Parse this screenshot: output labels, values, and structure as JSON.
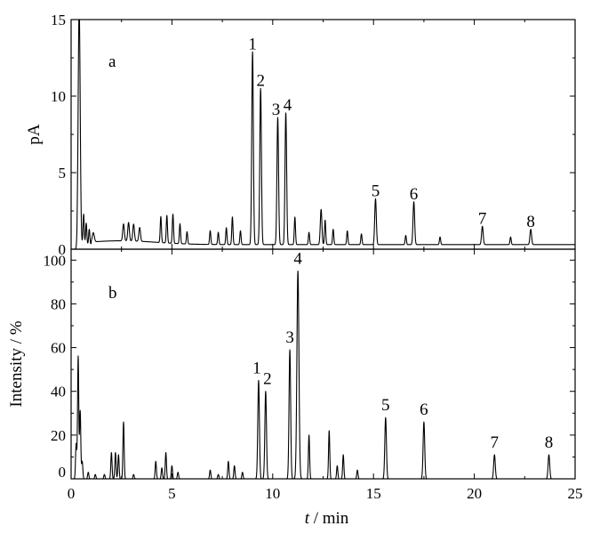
{
  "chart_data": [
    {
      "type": "line",
      "panel_label": "a",
      "ylabel": "pA",
      "xlabel": "",
      "xlim": [
        0,
        25
      ],
      "ylim": [
        0,
        15
      ],
      "yticks": [
        0,
        5,
        10,
        15
      ],
      "baseline": 0.3,
      "peaks": [
        {
          "x": 0.4,
          "y": 15.5,
          "w": 0.05
        },
        {
          "x": 0.62,
          "y": 2.0,
          "w": 0.03
        },
        {
          "x": 0.75,
          "y": 1.4,
          "w": 0.03
        },
        {
          "x": 0.9,
          "y": 1.0,
          "w": 0.03
        },
        {
          "x": 1.1,
          "y": 0.6,
          "w": 0.05
        },
        {
          "x": 2.6,
          "y": 1.1,
          "w": 0.04
        },
        {
          "x": 2.85,
          "y": 1.2,
          "w": 0.04
        },
        {
          "x": 3.1,
          "y": 1.1,
          "w": 0.04
        },
        {
          "x": 3.4,
          "y": 0.9,
          "w": 0.04
        },
        {
          "x": 4.45,
          "y": 1.7,
          "w": 0.03
        },
        {
          "x": 4.75,
          "y": 1.8,
          "w": 0.03
        },
        {
          "x": 5.05,
          "y": 1.9,
          "w": 0.03
        },
        {
          "x": 5.4,
          "y": 1.3,
          "w": 0.03
        },
        {
          "x": 5.75,
          "y": 0.8,
          "w": 0.03
        },
        {
          "x": 6.9,
          "y": 0.9,
          "w": 0.03
        },
        {
          "x": 7.3,
          "y": 0.8,
          "w": 0.03
        },
        {
          "x": 7.7,
          "y": 1.1,
          "w": 0.03
        },
        {
          "x": 8.0,
          "y": 1.8,
          "w": 0.03
        },
        {
          "x": 8.4,
          "y": 0.9,
          "w": 0.03
        },
        {
          "x": 9.0,
          "y": 12.6,
          "w": 0.04
        },
        {
          "x": 9.4,
          "y": 10.2,
          "w": 0.04
        },
        {
          "x": 10.25,
          "y": 8.3,
          "w": 0.04
        },
        {
          "x": 10.65,
          "y": 8.6,
          "w": 0.04
        },
        {
          "x": 11.1,
          "y": 1.8,
          "w": 0.03
        },
        {
          "x": 11.8,
          "y": 0.8,
          "w": 0.03
        },
        {
          "x": 12.4,
          "y": 2.3,
          "w": 0.04
        },
        {
          "x": 12.6,
          "y": 1.6,
          "w": 0.03
        },
        {
          "x": 13.0,
          "y": 1.0,
          "w": 0.03
        },
        {
          "x": 13.7,
          "y": 0.9,
          "w": 0.03
        },
        {
          "x": 14.4,
          "y": 0.7,
          "w": 0.03
        },
        {
          "x": 15.1,
          "y": 3.0,
          "w": 0.04
        },
        {
          "x": 16.6,
          "y": 0.6,
          "w": 0.03
        },
        {
          "x": 17.0,
          "y": 2.8,
          "w": 0.04
        },
        {
          "x": 18.3,
          "y": 0.5,
          "w": 0.03
        },
        {
          "x": 20.4,
          "y": 1.2,
          "w": 0.04
        },
        {
          "x": 21.8,
          "y": 0.5,
          "w": 0.03
        },
        {
          "x": 22.8,
          "y": 1.0,
          "w": 0.04
        }
      ],
      "annotations": [
        {
          "label": "1",
          "x": 9.0,
          "y": 12.6
        },
        {
          "label": "2",
          "x": 9.4,
          "y": 10.2
        },
        {
          "label": "3",
          "x": 10.25,
          "y": 8.3
        },
        {
          "label": "4",
          "x": 10.65,
          "y": 8.6
        },
        {
          "label": "5",
          "x": 15.1,
          "y": 3.0
        },
        {
          "label": "6",
          "x": 17.0,
          "y": 2.8
        },
        {
          "label": "7",
          "x": 20.4,
          "y": 1.2
        },
        {
          "label": "8",
          "x": 22.8,
          "y": 1.0
        }
      ]
    },
    {
      "type": "line",
      "panel_label": "b",
      "ylabel": "Intensity / %",
      "xlabel": "t / min",
      "xlim": [
        0,
        25
      ],
      "ylim": [
        0,
        105
      ],
      "yticks": [
        0,
        20,
        40,
        60,
        80,
        100
      ],
      "xticks": [
        0,
        5,
        10,
        15,
        20,
        25
      ],
      "baseline": 0.0,
      "peaks": [
        {
          "x": 0.25,
          "y": 16,
          "w": 0.03
        },
        {
          "x": 0.35,
          "y": 56,
          "w": 0.03
        },
        {
          "x": 0.45,
          "y": 31,
          "w": 0.03
        },
        {
          "x": 0.55,
          "y": 8,
          "w": 0.03
        },
        {
          "x": 0.85,
          "y": 3,
          "w": 0.03
        },
        {
          "x": 1.2,
          "y": 2,
          "w": 0.03
        },
        {
          "x": 1.65,
          "y": 2,
          "w": 0.03
        },
        {
          "x": 2.0,
          "y": 12,
          "w": 0.03
        },
        {
          "x": 2.2,
          "y": 12,
          "w": 0.03
        },
        {
          "x": 2.35,
          "y": 11,
          "w": 0.03
        },
        {
          "x": 2.6,
          "y": 26,
          "w": 0.03
        },
        {
          "x": 3.1,
          "y": 2,
          "w": 0.03
        },
        {
          "x": 4.2,
          "y": 8,
          "w": 0.03
        },
        {
          "x": 4.5,
          "y": 5,
          "w": 0.03
        },
        {
          "x": 4.7,
          "y": 12,
          "w": 0.03
        },
        {
          "x": 5.0,
          "y": 6,
          "w": 0.03
        },
        {
          "x": 5.3,
          "y": 3,
          "w": 0.03
        },
        {
          "x": 6.9,
          "y": 4,
          "w": 0.03
        },
        {
          "x": 7.3,
          "y": 2,
          "w": 0.03
        },
        {
          "x": 7.8,
          "y": 8,
          "w": 0.03
        },
        {
          "x": 8.1,
          "y": 6,
          "w": 0.03
        },
        {
          "x": 8.5,
          "y": 3,
          "w": 0.03
        },
        {
          "x": 9.3,
          "y": 45,
          "w": 0.04
        },
        {
          "x": 9.65,
          "y": 40,
          "w": 0.04
        },
        {
          "x": 10.85,
          "y": 59,
          "w": 0.04
        },
        {
          "x": 11.25,
          "y": 95,
          "w": 0.05
        },
        {
          "x": 11.8,
          "y": 20,
          "w": 0.03
        },
        {
          "x": 12.8,
          "y": 22,
          "w": 0.03
        },
        {
          "x": 13.2,
          "y": 6,
          "w": 0.03
        },
        {
          "x": 13.5,
          "y": 11,
          "w": 0.03
        },
        {
          "x": 14.2,
          "y": 4,
          "w": 0.03
        },
        {
          "x": 15.6,
          "y": 28,
          "w": 0.04
        },
        {
          "x": 17.5,
          "y": 26,
          "w": 0.04
        },
        {
          "x": 21.0,
          "y": 11,
          "w": 0.04
        },
        {
          "x": 23.7,
          "y": 11,
          "w": 0.04
        }
      ],
      "annotations": [
        {
          "label": "1",
          "x": 9.3,
          "y": 45
        },
        {
          "label": "2",
          "x": 9.65,
          "y": 40
        },
        {
          "label": "3",
          "x": 10.85,
          "y": 59
        },
        {
          "label": "4",
          "x": 11.25,
          "y": 95
        },
        {
          "label": "5",
          "x": 15.6,
          "y": 28
        },
        {
          "label": "6",
          "x": 17.5,
          "y": 26
        },
        {
          "label": "7",
          "x": 21.0,
          "y": 11
        },
        {
          "label": "8",
          "x": 23.7,
          "y": 11
        }
      ]
    }
  ]
}
